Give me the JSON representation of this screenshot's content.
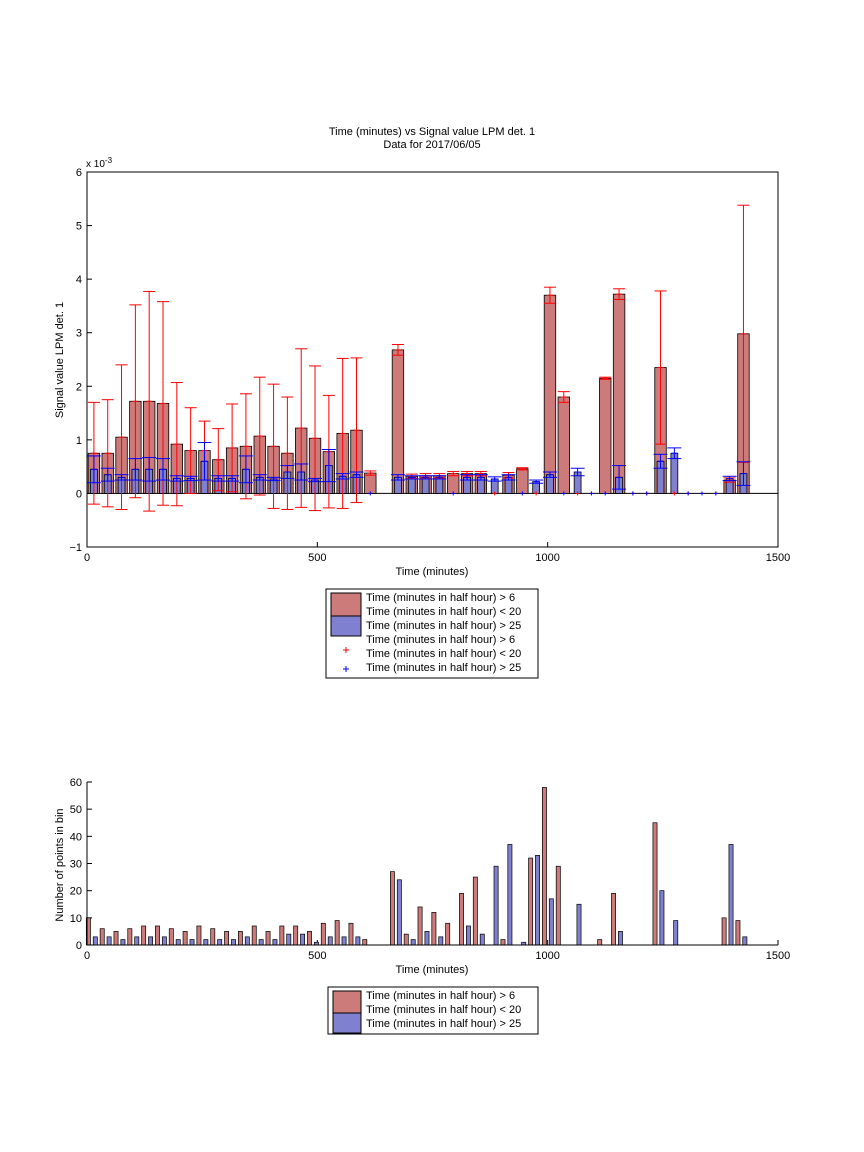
{
  "chart_data": [
    {
      "type": "bar",
      "title": "Time (minutes) vs Signal value LPM det. 1",
      "subtitle": "Data for 2017/06/05",
      "xlabel": "Time (minutes)",
      "ylabel": "Signal value LPM det. 1",
      "exponent_label": "x 10",
      "exponent_power": "-3",
      "xlim": [
        0,
        1500
      ],
      "ylim": [
        -1,
        6
      ],
      "xticks": [
        "0",
        "500",
        "1000",
        "1500"
      ],
      "yticks": [
        "−1",
        "0",
        "1",
        "2",
        "3",
        "4",
        "5",
        "6"
      ],
      "legend": {
        "position": "below",
        "entries": [
          "Time (minutes in half hour) > 6",
          "Time (minutes in half hour) < 20",
          "Time (minutes in half hour) > 25",
          "Time (minutes in half hour) > 6",
          "Time (minutes in half hour) < 20",
          "Time (minutes in half hour) > 25"
        ]
      },
      "series": [
        {
          "name": "Time (minutes in half hour) > 6 / < 20",
          "color": "#cc7a7a",
          "err_color": "#ff0000",
          "x": [
            15,
            45,
            75,
            105,
            135,
            165,
            195,
            225,
            255,
            285,
            315,
            345,
            375,
            405,
            435,
            465,
            495,
            525,
            555,
            585,
            615,
            675,
            705,
            735,
            765,
            795,
            825,
            855,
            885,
            915,
            945,
            975,
            1005,
            1035,
            1065,
            1095,
            1125,
            1155,
            1185,
            1215,
            1245,
            1275,
            1305,
            1335,
            1365,
            1395,
            1425
          ],
          "y": [
            0.75,
            0.75,
            1.05,
            1.72,
            1.72,
            1.68,
            0.92,
            0.8,
            0.8,
            0.63,
            0.85,
            0.88,
            1.07,
            0.88,
            0.75,
            1.22,
            1.03,
            0.78,
            1.12,
            1.18,
            0.38,
            2.68,
            0.32,
            0.33,
            0.33,
            0.37,
            0.37,
            0.37,
            0,
            0.34,
            0.46,
            0,
            3.7,
            1.8,
            0,
            0,
            2.15,
            3.72,
            0,
            0,
            2.35,
            0,
            0,
            0,
            0,
            0.25,
            2.98
          ],
          "err": [
            0.95,
            1.0,
            1.35,
            1.8,
            2.05,
            1.9,
            1.15,
            0.8,
            0.55,
            0.58,
            0.82,
            0.98,
            1.1,
            1.16,
            1.05,
            1.48,
            1.35,
            1.05,
            1.4,
            1.35,
            0.04,
            0.1,
            0.04,
            0.04,
            0.04,
            0.04,
            0.04,
            0.04,
            0,
            0.05,
            0.02,
            0,
            0.15,
            0.1,
            0,
            0,
            0.02,
            0.1,
            0,
            0,
            1.43,
            0,
            0,
            0,
            0,
            0.04,
            2.4
          ]
        },
        {
          "name": "Time (minutes in half hour) > 25",
          "color": "#8080d0",
          "err_color": "#0000ff",
          "x": [
            15,
            45,
            75,
            105,
            135,
            165,
            195,
            225,
            255,
            285,
            315,
            345,
            375,
            405,
            435,
            465,
            495,
            525,
            555,
            585,
            615,
            675,
            705,
            735,
            765,
            795,
            825,
            855,
            885,
            915,
            945,
            975,
            1005,
            1035,
            1065,
            1095,
            1125,
            1155,
            1185,
            1215,
            1245,
            1275,
            1305,
            1335,
            1365,
            1395,
            1425
          ],
          "y": [
            0.45,
            0.35,
            0.3,
            0.45,
            0.45,
            0.45,
            0.28,
            0.28,
            0.6,
            0.28,
            0.28,
            0.45,
            0.3,
            0.27,
            0.4,
            0.4,
            0.25,
            0.52,
            0.32,
            0.35,
            0,
            0.3,
            0.3,
            0.3,
            0.3,
            0,
            0.3,
            0.3,
            0.27,
            0.3,
            0,
            0.22,
            0.35,
            0,
            0.4,
            0,
            0,
            0.3,
            0,
            0,
            0.6,
            0.75,
            0,
            0,
            0,
            0.28,
            0.37
          ],
          "err": [
            0.25,
            0.12,
            0.05,
            0.2,
            0.22,
            0.2,
            0.05,
            0.04,
            0.35,
            0.05,
            0.05,
            0.25,
            0.05,
            0.03,
            0.12,
            0.15,
            0.03,
            0.3,
            0.05,
            0.05,
            0,
            0.05,
            0.03,
            0.03,
            0.03,
            0,
            0.05,
            0.05,
            0.04,
            0.05,
            0,
            0.03,
            0.05,
            0,
            0.07,
            0,
            0,
            0.22,
            0,
            0,
            0.13,
            0.1,
            0,
            0,
            0,
            0.04,
            0.22
          ]
        }
      ]
    },
    {
      "type": "bar",
      "xlabel": "Time (minutes)",
      "ylabel": "Number of points in bin",
      "xlim": [
        0,
        1500
      ],
      "ylim": [
        0,
        60
      ],
      "xticks": [
        "0",
        "500",
        "1000",
        "1500"
      ],
      "yticks": [
        "0",
        "10",
        "20",
        "30",
        "40",
        "50",
        "60"
      ],
      "legend": {
        "position": "below",
        "entries": [
          "Time (minutes in half hour) > 6",
          "Time (minutes in half hour) < 20",
          "Time (minutes in half hour) > 25"
        ]
      },
      "series": [
        {
          "name": "Time (minutes in half hour) > 6 / < 20",
          "color": "#cc7a7a",
          "x": [
            3,
            33,
            63,
            93,
            123,
            153,
            183,
            213,
            243,
            273,
            303,
            333,
            363,
            393,
            423,
            453,
            483,
            513,
            543,
            573,
            603,
            663,
            693,
            723,
            753,
            783,
            813,
            843,
            873,
            903,
            933,
            963,
            993,
            1023,
            1053,
            1083,
            1113,
            1143,
            1173,
            1203,
            1233,
            1263,
            1293,
            1323,
            1353,
            1383,
            1413
          ],
          "values": [
            10,
            6,
            5,
            6,
            7,
            7,
            6,
            5,
            7,
            6,
            5,
            5,
            7,
            5,
            7,
            7,
            5,
            8,
            9,
            8,
            2,
            27,
            4,
            14,
            12,
            8,
            19,
            25,
            0,
            2,
            0,
            32,
            58,
            29,
            0,
            0,
            2,
            19,
            0,
            0,
            45,
            0,
            0,
            0,
            0,
            10,
            9
          ]
        },
        {
          "name": "Time (minutes in half hour) > 25",
          "color": "#8080d0",
          "x": [
            18,
            48,
            78,
            108,
            138,
            168,
            198,
            228,
            258,
            288,
            318,
            348,
            378,
            408,
            438,
            468,
            498,
            528,
            558,
            588,
            618,
            678,
            708,
            738,
            768,
            798,
            828,
            858,
            888,
            918,
            948,
            978,
            1008,
            1038,
            1068,
            1098,
            1128,
            1158,
            1188,
            1218,
            1248,
            1278,
            1308,
            1338,
            1368,
            1398,
            1428
          ],
          "values": [
            3,
            3,
            2,
            3,
            3,
            3,
            2,
            2,
            2,
            2,
            2,
            3,
            2,
            2,
            4,
            4,
            1,
            3,
            3,
            3,
            0,
            24,
            2,
            5,
            3,
            0,
            7,
            4,
            29,
            37,
            1,
            33,
            17,
            0,
            15,
            0,
            0,
            5,
            0,
            0,
            20,
            9,
            0,
            0,
            0,
            37,
            3
          ]
        }
      ]
    }
  ]
}
